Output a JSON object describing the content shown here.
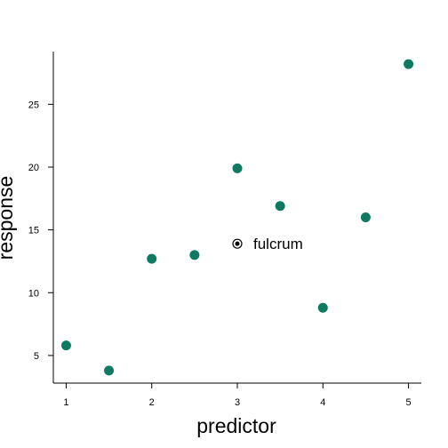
{
  "chart_data": {
    "type": "scatter",
    "xlabel": "predictor",
    "ylabel": "response",
    "xlim": [
      0.85,
      5.15
    ],
    "ylim": [
      2.8,
      29.2
    ],
    "xticks": [
      1,
      2,
      3,
      4,
      5
    ],
    "yticks": [
      5,
      10,
      15,
      20,
      25
    ],
    "grid": false,
    "series": [
      {
        "color": "#0e7a62",
        "points": [
          {
            "x": 1.0,
            "y": 5.8
          },
          {
            "x": 1.5,
            "y": 3.8
          },
          {
            "x": 2.0,
            "y": 12.7
          },
          {
            "x": 2.5,
            "y": 13.0
          },
          {
            "x": 3.0,
            "y": 19.9
          },
          {
            "x": 3.5,
            "y": 16.9
          },
          {
            "x": 4.0,
            "y": 8.8
          },
          {
            "x": 4.5,
            "y": 16.0
          },
          {
            "x": 5.0,
            "y": 28.2
          }
        ]
      }
    ],
    "annotations": [
      {
        "label": "fulcrum",
        "x": 3.0,
        "y": 13.9,
        "marker": "circled-dot"
      }
    ]
  }
}
